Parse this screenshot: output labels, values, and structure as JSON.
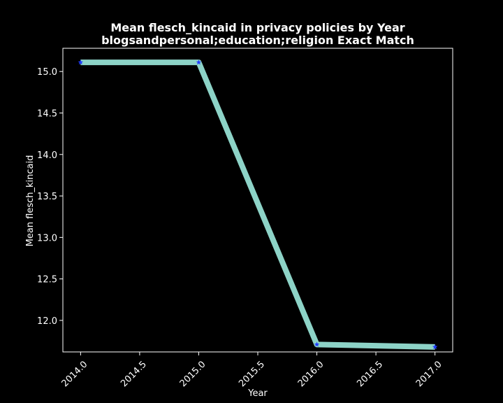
{
  "chart_data": {
    "type": "line",
    "title": "Mean flesch_kincaid in privacy policies by Year",
    "subtitle": "blogsandpersonal;education;religion Exact Match",
    "xlabel": "Year",
    "ylabel": "Mean flesch_kincaid",
    "x": [
      2014.0,
      2015.0,
      2016.0,
      2017.0
    ],
    "series": [
      {
        "values": [
          15.11,
          15.11,
          11.71,
          11.68
        ]
      }
    ],
    "xlim": [
      2013.85,
      2017.15
    ],
    "ylim": [
      11.62,
      15.28
    ],
    "xticks": [
      "2014.0",
      "2014.5",
      "2015.0",
      "2015.5",
      "2016.0",
      "2016.5",
      "2017.0"
    ],
    "xtick_values": [
      2014.0,
      2014.5,
      2015.0,
      2015.5,
      2016.0,
      2016.5,
      2017.0
    ],
    "yticks": [
      "12.0",
      "12.5",
      "13.0",
      "13.5",
      "14.0",
      "14.5",
      "15.0"
    ],
    "ytick_values": [
      12.0,
      12.5,
      13.0,
      13.5,
      14.0,
      14.5,
      15.0
    ],
    "grid": false,
    "background": "#000000",
    "line_color": "#8dd3c7",
    "marker_color": "#1f3cff",
    "marker": "star"
  }
}
